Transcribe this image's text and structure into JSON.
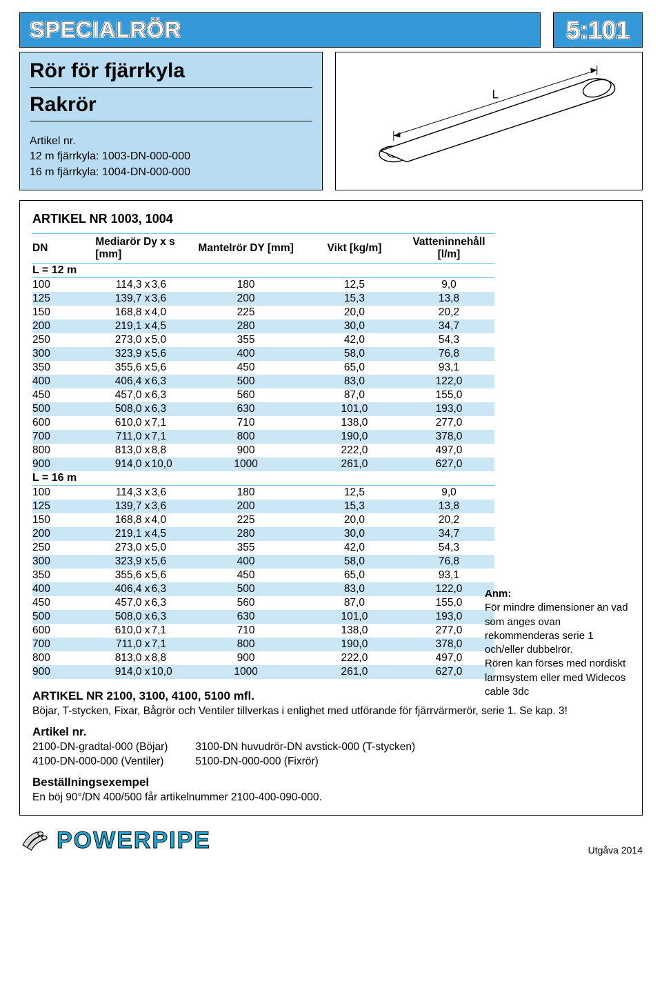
{
  "header": {
    "category": "SPECIALRÖR",
    "code": "5:101"
  },
  "title": {
    "main": "Rör för fjärrkyla",
    "sub": "Rakrör",
    "art_label": "Artikel nr.",
    "art_line1": "12 m fjärrkyla: 1003-DN-000-000",
    "art_line2": "16 m fjärrkyla: 1004-DN-000-000"
  },
  "diagram": {
    "label_L": "L"
  },
  "table_title": "ARTIKEL NR 1003, 1004",
  "columns": {
    "c0": "DN",
    "c1": "Mediarör Dy x s [mm]",
    "c2": "Mantelrör DY [mm]",
    "c3": "Vikt [kg/m]",
    "c4": "Vatteninnehåll [l/m]"
  },
  "section1_label": "L = 12 m",
  "section2_label": "L = 16 m",
  "rows12": [
    {
      "dn": "100",
      "dy": "114,3 x",
      "s": "3,6",
      "mant": "180",
      "vikt": "12,5",
      "vat": "9,0"
    },
    {
      "dn": "125",
      "dy": "139,7 x",
      "s": "3,6",
      "mant": "200",
      "vikt": "15,3",
      "vat": "13,8"
    },
    {
      "dn": "150",
      "dy": "168,8 x",
      "s": "4,0",
      "mant": "225",
      "vikt": "20,0",
      "vat": "20,2"
    },
    {
      "dn": "200",
      "dy": "219,1 x",
      "s": "4,5",
      "mant": "280",
      "vikt": "30,0",
      "vat": "34,7"
    },
    {
      "dn": "250",
      "dy": "273,0 x",
      "s": "5,0",
      "mant": "355",
      "vikt": "42,0",
      "vat": "54,3"
    },
    {
      "dn": "300",
      "dy": "323,9 x",
      "s": "5,6",
      "mant": "400",
      "vikt": "58,0",
      "vat": "76,8"
    },
    {
      "dn": "350",
      "dy": "355,6 x",
      "s": "5,6",
      "mant": "450",
      "vikt": "65,0",
      "vat": "93,1"
    },
    {
      "dn": "400",
      "dy": "406,4 x",
      "s": "6,3",
      "mant": "500",
      "vikt": "83,0",
      "vat": "122,0"
    },
    {
      "dn": "450",
      "dy": "457,0 x",
      "s": "6,3",
      "mant": "560",
      "vikt": "87,0",
      "vat": "155,0"
    },
    {
      "dn": "500",
      "dy": "508,0 x",
      "s": "6,3",
      "mant": "630",
      "vikt": "101,0",
      "vat": "193,0"
    },
    {
      "dn": "600",
      "dy": "610,0 x",
      "s": "7,1",
      "mant": "710",
      "vikt": "138,0",
      "vat": "277,0"
    },
    {
      "dn": "700",
      "dy": "711,0 x",
      "s": "7,1",
      "mant": "800",
      "vikt": "190,0",
      "vat": "378,0"
    },
    {
      "dn": "800",
      "dy": "813,0 x",
      "s": "8,8",
      "mant": "900",
      "vikt": "222,0",
      "vat": "497,0"
    },
    {
      "dn": "900",
      "dy": "914,0 x",
      "s": "10,0",
      "mant": "1000",
      "vikt": "261,0",
      "vat": "627,0"
    }
  ],
  "rows16": [
    {
      "dn": "100",
      "dy": "114,3 x",
      "s": "3,6",
      "mant": "180",
      "vikt": "12,5",
      "vat": "9,0"
    },
    {
      "dn": "125",
      "dy": "139,7 x",
      "s": "3,6",
      "mant": "200",
      "vikt": "15,3",
      "vat": "13,8"
    },
    {
      "dn": "150",
      "dy": "168,8 x",
      "s": "4,0",
      "mant": "225",
      "vikt": "20,0",
      "vat": "20,2"
    },
    {
      "dn": "200",
      "dy": "219,1 x",
      "s": "4,5",
      "mant": "280",
      "vikt": "30,0",
      "vat": "34,7"
    },
    {
      "dn": "250",
      "dy": "273,0 x",
      "s": "5,0",
      "mant": "355",
      "vikt": "42,0",
      "vat": "54,3"
    },
    {
      "dn": "300",
      "dy": "323,9 x",
      "s": "5,6",
      "mant": "400",
      "vikt": "58,0",
      "vat": "76,8"
    },
    {
      "dn": "350",
      "dy": "355,6 x",
      "s": "5,6",
      "mant": "450",
      "vikt": "65,0",
      "vat": "93,1"
    },
    {
      "dn": "400",
      "dy": "406,4 x",
      "s": "6,3",
      "mant": "500",
      "vikt": "83,0",
      "vat": "122,0"
    },
    {
      "dn": "450",
      "dy": "457,0 x",
      "s": "6,3",
      "mant": "560",
      "vikt": "87,0",
      "vat": "155,0"
    },
    {
      "dn": "500",
      "dy": "508,0 x",
      "s": "6,3",
      "mant": "630",
      "vikt": "101,0",
      "vat": "193,0"
    },
    {
      "dn": "600",
      "dy": "610,0 x",
      "s": "7,1",
      "mant": "710",
      "vikt": "138,0",
      "vat": "277,0"
    },
    {
      "dn": "700",
      "dy": "711,0 x",
      "s": "7,1",
      "mant": "800",
      "vikt": "190,0",
      "vat": "378,0"
    },
    {
      "dn": "800",
      "dy": "813,0 x",
      "s": "8,8",
      "mant": "900",
      "vikt": "222,0",
      "vat": "497,0"
    },
    {
      "dn": "900",
      "dy": "914,0 x",
      "s": "10,0",
      "mant": "1000",
      "vikt": "261,0",
      "vat": "627,0"
    }
  ],
  "note": {
    "h": "Anm:",
    "body": "För mindre dimensioner än vad som anges ovan rekommenderas serie 1 och/eller dubbelrör.\nRören kan förses med nordiskt larmsystem eller med Widecos cable 3dc"
  },
  "below": {
    "h1": "ARTIKEL NR 2100, 3100, 4100, 5100 mfl.",
    "l1": "Böjar, T-stycken, Fixar, Bågrör och Ventiler tillverkas i enlighet med utförande för fjärrvärmerör, serie 1. Se kap. 3!",
    "h2": "Artikel nr.",
    "col1a": "2100-DN-gradtal-000 (Böjar)",
    "col1b": "4100-DN-000-000 (Ventiler)",
    "col2a": "3100-DN huvudrör-DN avstick-000 (T-stycken)",
    "col2b": "5100-DN-000-000 (Fixrör)",
    "h3": "Beställningsexempel",
    "l3": "En böj 90°/DN 400/500 får artikelnummer 2100-400-090-000."
  },
  "footer": {
    "logo": "POWERPIPE",
    "edition": "Utgåva 2014"
  }
}
